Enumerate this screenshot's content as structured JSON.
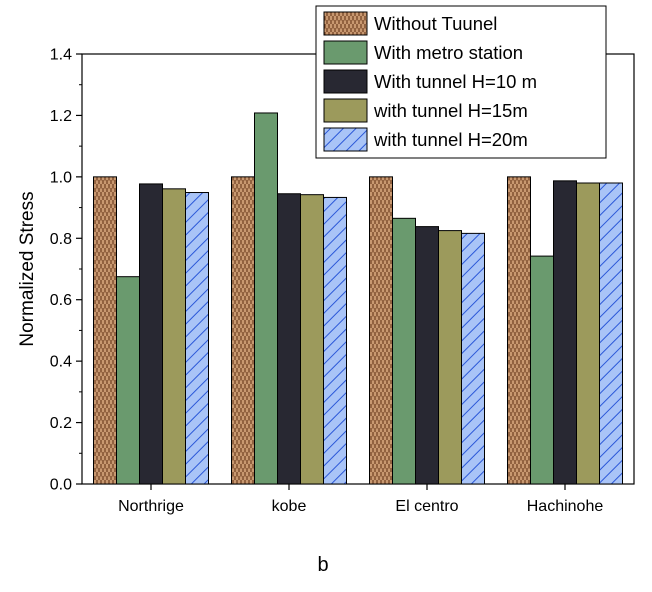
{
  "chart_data": {
    "type": "bar",
    "categories": [
      "Northrige",
      "kobe",
      "El centro",
      "Hachinohe"
    ],
    "series": [
      {
        "name": "Without Tuunel",
        "values": [
          1.0,
          1.0,
          1.0,
          1.0
        ]
      },
      {
        "name": "With metro station",
        "values": [
          0.675,
          1.208,
          0.865,
          0.742
        ]
      },
      {
        "name": "With tunnel H=10 m",
        "values": [
          0.977,
          0.945,
          0.838,
          0.987
        ]
      },
      {
        "name": "with tunnel H=15m",
        "values": [
          0.961,
          0.942,
          0.825,
          0.98
        ]
      },
      {
        "name": "with tunnel H=20m",
        "values": [
          0.949,
          0.933,
          0.816,
          0.98
        ]
      }
    ],
    "ylabel": "Normalized Stress",
    "xlabel": "",
    "ylim": [
      0.0,
      1.4
    ],
    "yticks": [
      "0.0",
      "0.2",
      "0.4",
      "0.6",
      "0.8",
      "1.0",
      "1.2",
      "1.4"
    ],
    "legend_position": "top-right",
    "grid": false,
    "series_styles": [
      {
        "fill": "#c89870",
        "pattern": "vertical-dashes"
      },
      {
        "fill": "#6a9a6e",
        "pattern": "none"
      },
      {
        "fill": "#282832",
        "pattern": "none"
      },
      {
        "fill": "#9c9a5c",
        "pattern": "none"
      },
      {
        "fill": "#a9c4f7",
        "pattern": "diagonal-hatch",
        "hatch_color": "#2b58d8"
      }
    ]
  },
  "caption": "b"
}
